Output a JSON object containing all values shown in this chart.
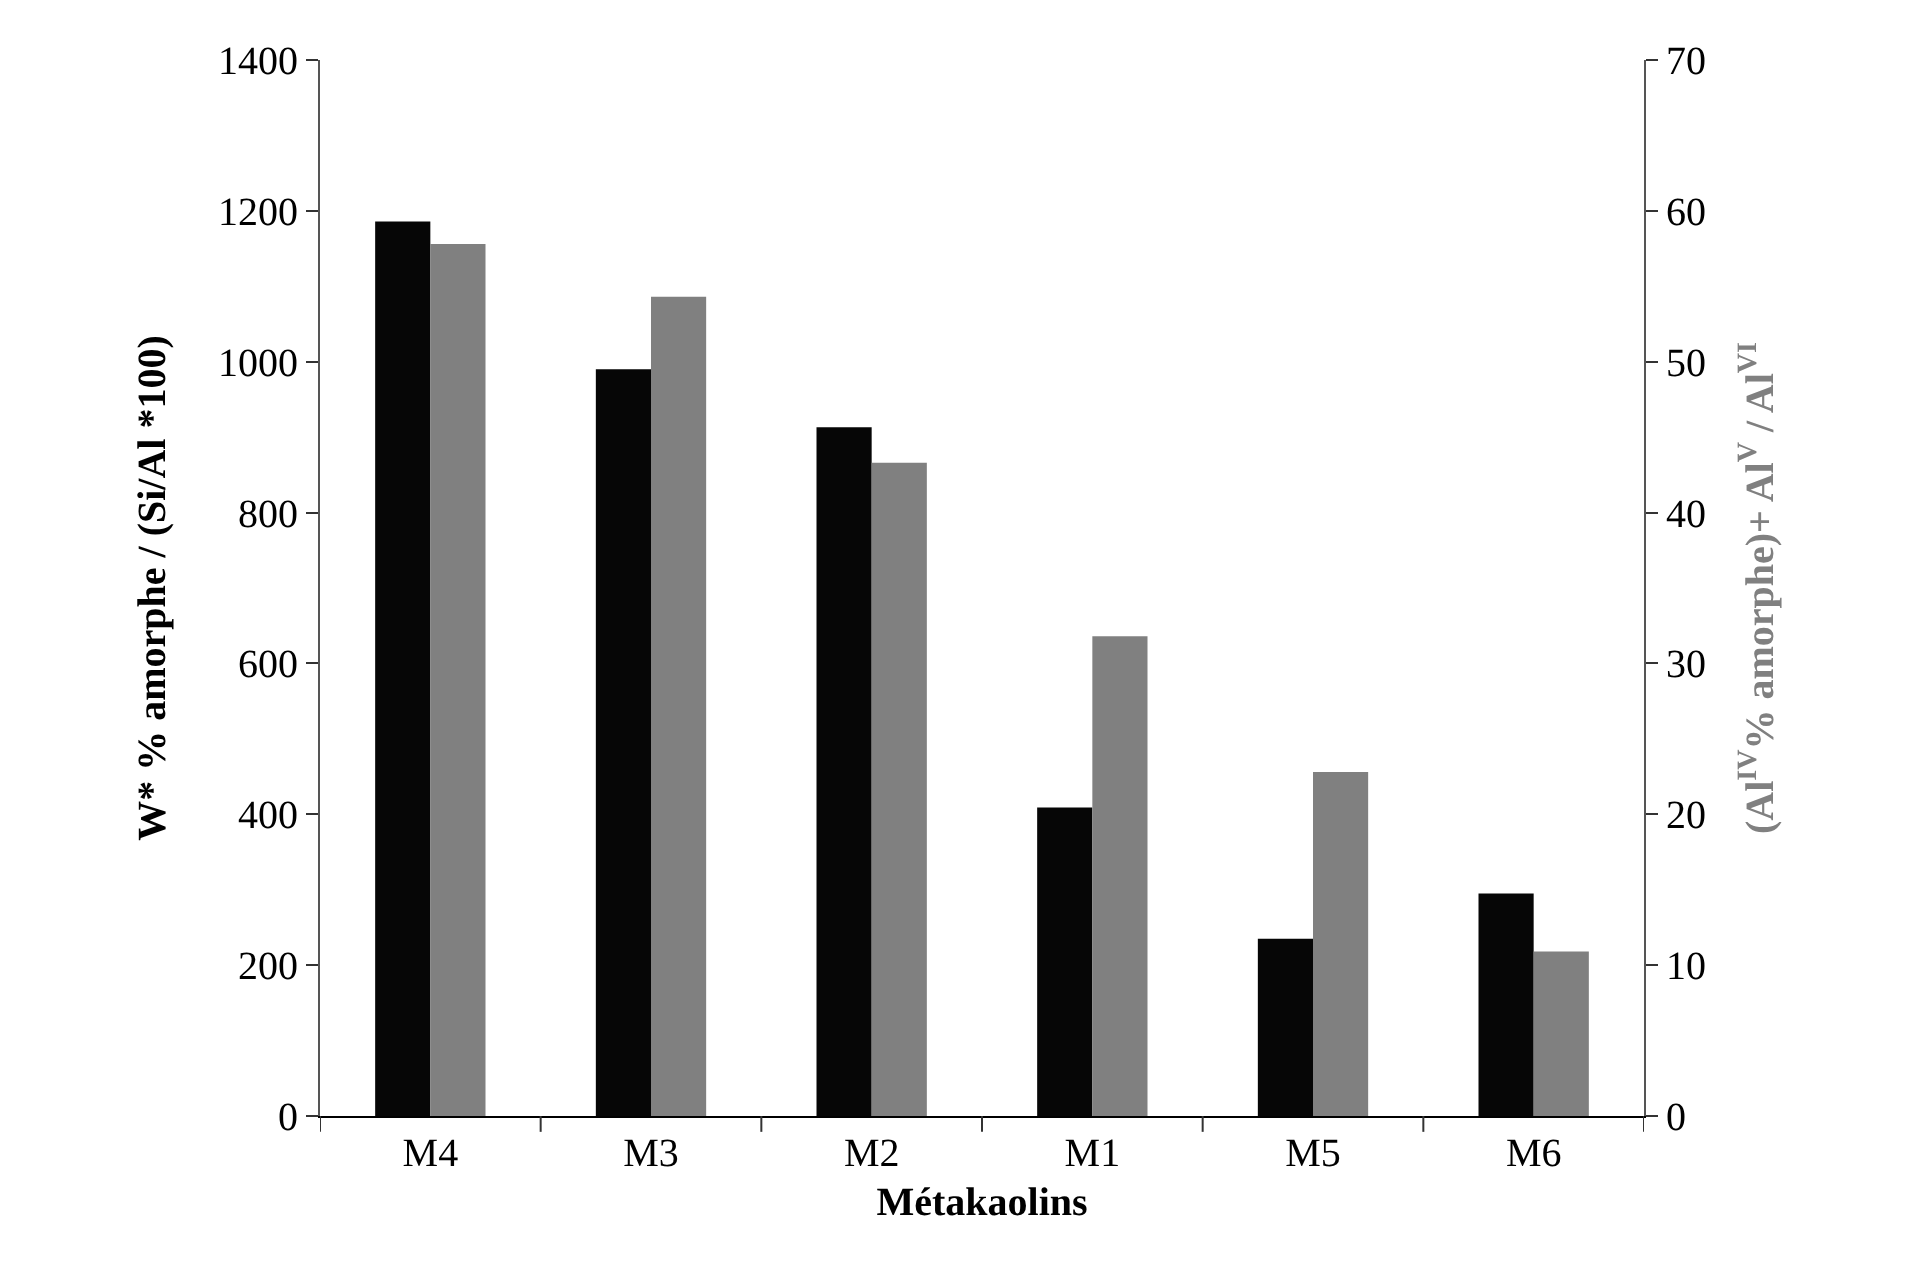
{
  "chart_data": {
    "type": "bar",
    "xlabel": "Métakaolins",
    "ylabel": "W* % amorphe / (Si/Al *100)",
    "y2label": "(Al$^{IV}$% amorphe)+ Al$^{V}$ / Al$^{VI}$",
    "categories": [
      "M4",
      "M3",
      "M2",
      "M1",
      "M5",
      "M6"
    ],
    "series": [
      {
        "color": "#060606",
        "values": [
          1186,
          990,
          913,
          409,
          235,
          295
        ]
      },
      {
        "color": "#808080",
        "axis": "y2",
        "values": [
          57.8,
          54.3,
          43.3,
          31.8,
          22.8,
          10.9
        ]
      }
    ],
    "ylim": [
      0,
      1400
    ],
    "yticks": [
      0,
      200,
      400,
      600,
      800,
      1000,
      1200,
      1400
    ],
    "y2lim": [
      0,
      70
    ],
    "y2ticks": [
      0,
      10,
      20,
      30,
      40,
      50,
      60,
      70
    ],
    "grid": false
  }
}
